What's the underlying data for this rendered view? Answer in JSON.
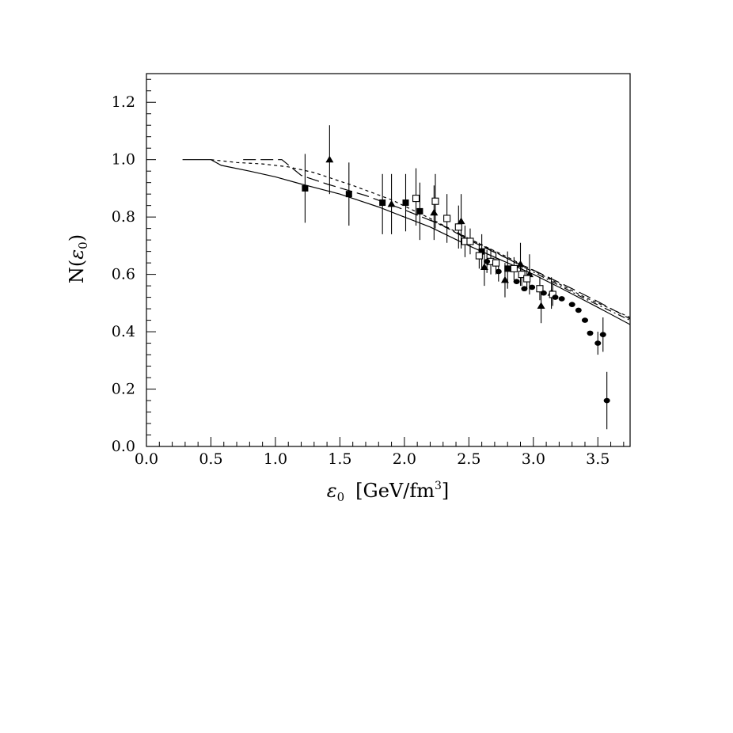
{
  "chart_data": {
    "type": "scatter",
    "title": "",
    "xlabel": {
      "symbol": "ε",
      "sub": "0",
      "unit_pre": "[GeV/fm",
      "unit_sup": "3",
      "unit_post": "]"
    },
    "ylabel": {
      "pre": "N(",
      "symbol": "ε",
      "sub": "0",
      "post": ")"
    },
    "xlim": [
      0.0,
      3.75
    ],
    "ylim": [
      0.0,
      1.3
    ],
    "x_ticks": [
      0.0,
      0.5,
      1.0,
      1.5,
      2.0,
      2.5,
      3.0,
      3.5
    ],
    "x_tick_labels": [
      "0.0",
      "0.5",
      "1.0",
      "1.5",
      "2.0",
      "2.5",
      "3.0",
      "3.5"
    ],
    "y_ticks": [
      0.0,
      0.2,
      0.4,
      0.6,
      0.8,
      1.0,
      1.2
    ],
    "y_tick_labels": [
      "0.0",
      "0.2",
      "0.4",
      "0.6",
      "0.8",
      "1.0",
      "1.2"
    ],
    "grid": false,
    "legend": "none",
    "curves": [
      {
        "style": "solid",
        "x": [
          0.28,
          0.5,
          0.58,
          0.8,
          1.0,
          1.2,
          1.5,
          1.8,
          2.0,
          2.2,
          2.5,
          2.8,
          3.0,
          3.2,
          3.5,
          3.75
        ],
        "y": [
          1.0,
          1.0,
          0.98,
          0.96,
          0.94,
          0.915,
          0.88,
          0.835,
          0.8,
          0.765,
          0.7,
          0.64,
          0.6,
          0.555,
          0.485,
          0.425
        ]
      },
      {
        "style": "long-dash",
        "x": [
          0.75,
          1.05,
          1.2,
          1.4,
          1.7,
          2.0,
          2.3,
          2.5,
          2.8,
          3.0,
          3.3,
          3.5,
          3.75
        ],
        "y": [
          1.0,
          1.0,
          0.945,
          0.915,
          0.875,
          0.825,
          0.77,
          0.72,
          0.655,
          0.615,
          0.55,
          0.505,
          0.445
        ]
      },
      {
        "style": "short-dash",
        "x": [
          0.5,
          0.7,
          0.9,
          1.1,
          1.3,
          1.6,
          1.9,
          2.2,
          2.5,
          2.8,
          3.1,
          3.4,
          3.75
        ],
        "y": [
          1.0,
          0.99,
          0.985,
          0.975,
          0.955,
          0.91,
          0.86,
          0.795,
          0.725,
          0.66,
          0.59,
          0.52,
          0.45
        ]
      },
      {
        "style": "dash-dot",
        "x": [
          2.2,
          2.5,
          2.8,
          3.1,
          3.4,
          3.75
        ],
        "y": [
          0.79,
          0.725,
          0.655,
          0.585,
          0.515,
          0.44
        ]
      }
    ],
    "series": [
      {
        "marker": "filled-square",
        "points": [
          {
            "x": 1.23,
            "y": 0.9,
            "lo": 0.78,
            "hi": 1.02
          },
          {
            "x": 1.57,
            "y": 0.88,
            "lo": 0.77,
            "hi": 0.99
          },
          {
            "x": 1.83,
            "y": 0.85,
            "lo": 0.74,
            "hi": 0.95
          },
          {
            "x": 2.01,
            "y": 0.85,
            "lo": 0.75,
            "hi": 0.95
          },
          {
            "x": 2.12,
            "y": 0.82,
            "lo": 0.72,
            "hi": 0.92
          },
          {
            "x": 2.6,
            "y": 0.68,
            "lo": 0.62,
            "hi": 0.74
          },
          {
            "x": 2.8,
            "y": 0.62,
            "lo": 0.55,
            "hi": 0.68
          }
        ]
      },
      {
        "marker": "filled-triangle",
        "points": [
          {
            "x": 1.42,
            "y": 1.0,
            "lo": 0.88,
            "hi": 1.12
          },
          {
            "x": 1.9,
            "y": 0.845,
            "lo": 0.74,
            "hi": 0.95
          },
          {
            "x": 2.23,
            "y": 0.815,
            "lo": 0.72,
            "hi": 0.91
          },
          {
            "x": 2.44,
            "y": 0.785,
            "lo": 0.69,
            "hi": 0.88
          },
          {
            "x": 2.62,
            "y": 0.625,
            "lo": 0.56,
            "hi": 0.69
          },
          {
            "x": 2.78,
            "y": 0.58,
            "lo": 0.52,
            "hi": 0.64
          },
          {
            "x": 2.9,
            "y": 0.635,
            "lo": 0.56,
            "hi": 0.71
          },
          {
            "x": 2.97,
            "y": 0.6,
            "lo": 0.53,
            "hi": 0.67
          },
          {
            "x": 3.06,
            "y": 0.49,
            "lo": 0.43,
            "hi": 0.55
          },
          {
            "x": 3.14,
            "y": 0.535,
            "lo": 0.48,
            "hi": 0.59
          }
        ]
      },
      {
        "marker": "open-square",
        "points": [
          {
            "x": 2.09,
            "y": 0.865,
            "lo": 0.77,
            "hi": 0.97
          },
          {
            "x": 2.24,
            "y": 0.855,
            "lo": 0.76,
            "hi": 0.95
          },
          {
            "x": 2.33,
            "y": 0.795,
            "lo": 0.71,
            "hi": 0.88
          },
          {
            "x": 2.42,
            "y": 0.765,
            "lo": 0.69,
            "hi": 0.84
          },
          {
            "x": 2.47,
            "y": 0.715,
            "lo": 0.66,
            "hi": 0.77
          },
          {
            "x": 2.51,
            "y": 0.715,
            "lo": 0.67,
            "hi": 0.76
          },
          {
            "x": 2.58,
            "y": 0.665,
            "lo": 0.62,
            "hi": 0.71
          },
          {
            "x": 2.67,
            "y": 0.645,
            "lo": 0.6,
            "hi": 0.69
          },
          {
            "x": 2.71,
            "y": 0.64,
            "lo": 0.6,
            "hi": 0.68
          },
          {
            "x": 2.85,
            "y": 0.62,
            "lo": 0.58,
            "hi": 0.66
          },
          {
            "x": 2.91,
            "y": 0.6,
            "lo": 0.56,
            "hi": 0.64
          },
          {
            "x": 2.95,
            "y": 0.585,
            "lo": 0.55,
            "hi": 0.62
          },
          {
            "x": 3.05,
            "y": 0.55,
            "lo": 0.51,
            "hi": 0.59
          },
          {
            "x": 3.15,
            "y": 0.53,
            "lo": 0.49,
            "hi": 0.57
          }
        ]
      },
      {
        "marker": "filled-circle",
        "points": [
          {
            "x": 2.64,
            "y": 0.645,
            "lo": 0.605,
            "hi": 0.685
          },
          {
            "x": 2.73,
            "y": 0.61,
            "lo": 0.575,
            "hi": 0.645
          },
          {
            "x": 2.87,
            "y": 0.575
          },
          {
            "x": 2.93,
            "y": 0.55
          },
          {
            "x": 2.99,
            "y": 0.555
          },
          {
            "x": 3.08,
            "y": 0.535
          },
          {
            "x": 3.17,
            "y": 0.52
          },
          {
            "x": 3.22,
            "y": 0.515
          },
          {
            "x": 3.3,
            "y": 0.495
          },
          {
            "x": 3.35,
            "y": 0.475
          },
          {
            "x": 3.4,
            "y": 0.44
          },
          {
            "x": 3.44,
            "y": 0.395
          },
          {
            "x": 3.5,
            "y": 0.36,
            "lo": 0.32,
            "hi": 0.4
          },
          {
            "x": 3.54,
            "y": 0.39,
            "lo": 0.33,
            "hi": 0.45
          },
          {
            "x": 3.57,
            "y": 0.16,
            "lo": 0.06,
            "hi": 0.26
          }
        ]
      }
    ]
  }
}
